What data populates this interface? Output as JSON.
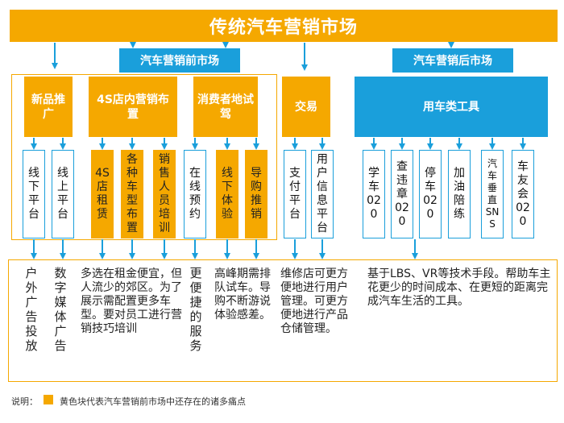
{
  "title": "传统汽车营销市场",
  "pre_market": {
    "label": "汽车营销前市场"
  },
  "after_market": {
    "label": "汽车营销后市场"
  },
  "categories": {
    "new_product": "新品推广",
    "store": "4S店内营销布置",
    "consumer": "消费者地试驾",
    "trade": "交易",
    "car_tools": "用车类工具"
  },
  "items": {
    "offline": "线下平台",
    "online": "线上平台",
    "rent": "4S店租赁",
    "models": "各种车型布置",
    "training": "销售人员培训",
    "booking": "在线预约",
    "offline_exp": "线下体验",
    "guide": "导购推销",
    "payment": "支付平台",
    "userinfo": "用户信息平台",
    "learn": "学车020",
    "violation": "查违章020",
    "parking": "停车020",
    "refuel": "加油陪练",
    "vertical": "汽车垂直SNS",
    "club": "车友会020"
  },
  "descriptions": {
    "outdoor": "户外广告投放",
    "digital": "数字媒体广告",
    "store_desc": "多选在租金便宜，但人流少的郊区。为了展示需配置更多车型。要对员工进行营销技巧培训",
    "booking_desc": "更便捷的服务",
    "peak_desc": "高峰期需排队试车。导购不断游说体验感差。",
    "trade_desc": "维修店可更方便地进行用户管理。可更方便地进行产品仓储管理。",
    "after_desc": "基于LBS、VR等技术手段。帮助车主花更少的时间成本、在更短的距离完成汽车生活的工具。"
  },
  "note": {
    "label": "说明：",
    "text": "黄色块代表汽车营销前市场中还存在的诸多痛点"
  },
  "colors": {
    "orange": "#f5a800",
    "blue": "#1a9fdb"
  }
}
